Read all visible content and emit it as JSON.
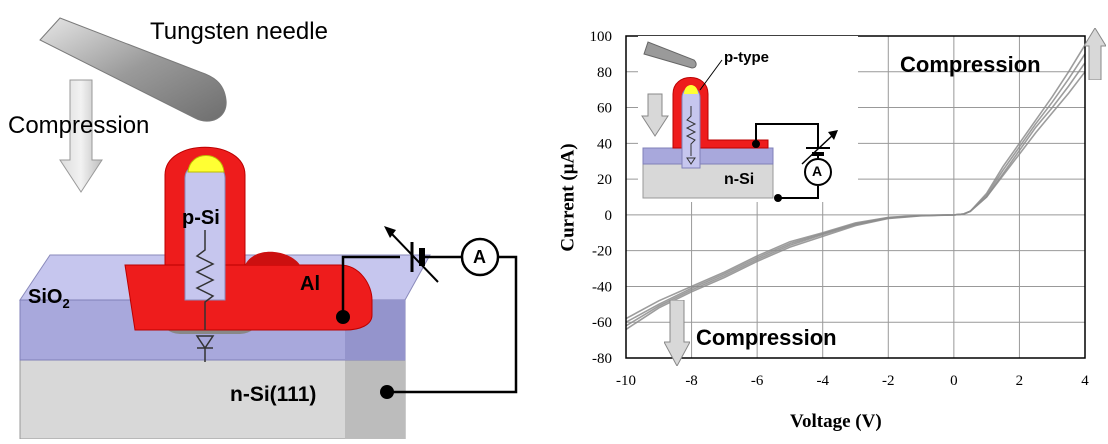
{
  "diagram": {
    "needle_label": "Tungsten needle",
    "compression_label": "Compression",
    "psi_label": "p-Si",
    "al_label": "Al",
    "sio2_label_base": "SiO",
    "sio2_label_sub": "2",
    "nsi_label": "n-Si(111)",
    "ammeter_symbol": "A"
  },
  "inset": {
    "ptype_label": "p-type",
    "nsi_label": "n-Si",
    "ammeter_symbol": "A"
  },
  "annotations": {
    "compression_top": "Compression",
    "compression_bottom": "Compression"
  },
  "colors": {
    "al_red": "#ee1c1c",
    "sio2_lavender": "#a8a8dc",
    "silicon_gray": "#d4d4d4",
    "needle_gray": "#9a9a9a",
    "arrow_gray": "#c8c8c8",
    "curve_gray": "#8c8c8c",
    "tip_yellow": "#ffff33"
  },
  "chart_data": {
    "type": "line",
    "xlabel": "Voltage (V)",
    "ylabel": "Current (µA)",
    "xlim": [
      -10,
      4
    ],
    "ylim": [
      -80,
      100
    ],
    "xticks": [
      -10,
      -8,
      -6,
      -4,
      -2,
      0,
      2,
      4
    ],
    "yticks": [
      -80,
      -60,
      -40,
      -20,
      0,
      20,
      40,
      60,
      80,
      100
    ],
    "grid": true,
    "series": [
      {
        "x": [
          -10,
          -9,
          -8,
          -7,
          -6,
          -5,
          -4,
          -3,
          -2,
          -1,
          0,
          0.3,
          0.5,
          1,
          1.5,
          2,
          2.5,
          3,
          3.5,
          4
        ],
        "y": [
          -64,
          -52,
          -43,
          -35,
          -26,
          -18,
          -12,
          -6,
          -2,
          -0.5,
          0,
          0.5,
          2,
          12,
          27,
          40,
          53,
          66,
          80,
          95
        ]
      },
      {
        "x": [
          -10,
          -9,
          -8,
          -7,
          -6,
          -5,
          -4,
          -3,
          -2,
          -1,
          0,
          0.3,
          0.5,
          1,
          1.5,
          2,
          2.5,
          3,
          3.5,
          4
        ],
        "y": [
          -62,
          -51,
          -42,
          -34,
          -25,
          -17,
          -11,
          -5.5,
          -1.8,
          -0.4,
          0,
          0.5,
          2,
          11,
          25,
          38,
          51,
          63,
          76,
          90
        ]
      },
      {
        "x": [
          -10,
          -9,
          -8,
          -7,
          -6,
          -5,
          -4,
          -3,
          -2,
          -1,
          0,
          0.3,
          0.5,
          1,
          1.5,
          2,
          2.5,
          3,
          3.5,
          4
        ],
        "y": [
          -60,
          -50,
          -41,
          -33,
          -24,
          -16,
          -10.5,
          -5,
          -1.6,
          -0.3,
          0,
          0.5,
          2,
          10,
          23,
          36,
          49,
          60,
          72,
          85
        ]
      },
      {
        "x": [
          -10,
          -9,
          -8,
          -7,
          -6,
          -5,
          -4,
          -3,
          -2,
          -1,
          0,
          0.3,
          0.5,
          1,
          1.5,
          2,
          2.5,
          3,
          3.5,
          4
        ],
        "y": [
          -58,
          -48,
          -40,
          -32,
          -23,
          -15,
          -10,
          -4.5,
          -1.4,
          -0.3,
          0,
          0.5,
          2,
          10,
          22,
          34,
          46,
          57,
          68,
          80
        ]
      }
    ]
  }
}
